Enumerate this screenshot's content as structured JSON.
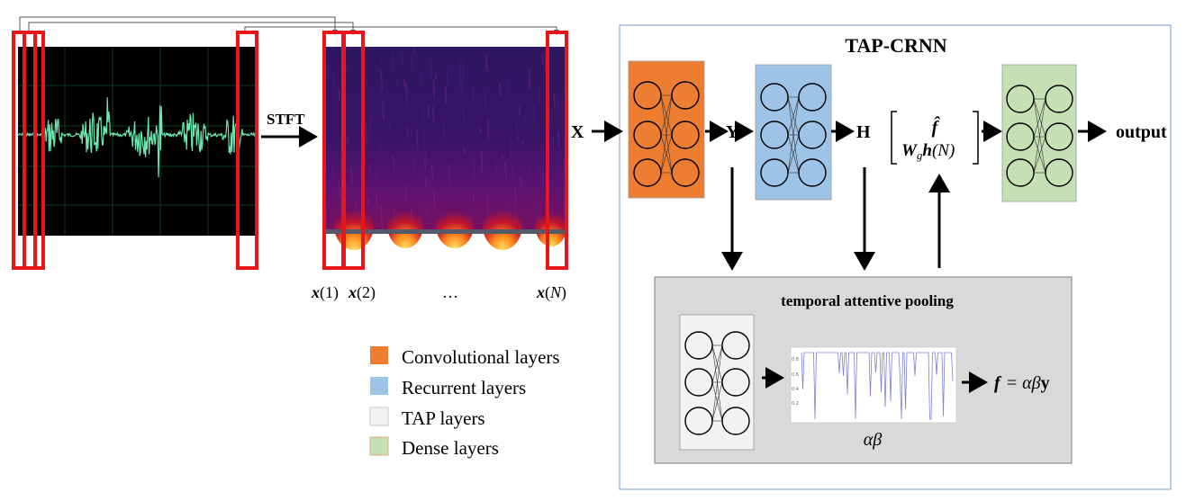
{
  "labels": {
    "stft": "STFT",
    "x_input": "X",
    "y_mid": "Y",
    "h_mid": "H",
    "output": "output",
    "title": "TAP-CRNN",
    "tap_title": "temporal attentive pooling",
    "alpha_beta": "αβ",
    "frame_1": "x(1)",
    "frame_2": "x(2)",
    "frame_dots": "…",
    "frame_n": "x(N)",
    "vector_top": "f̂",
    "vector_bottom": "W",
    "vector_bottom_sub": "g",
    "vector_bottom_rest": "h(N)",
    "f_eq_lhs": "f",
    "f_eq_rhs": "= αβy"
  },
  "legend": [
    {
      "label": "Convolutional layers",
      "color": "#ED7D31"
    },
    {
      "label": "Recurrent layers",
      "color": "#9DC3E6"
    },
    {
      "label": "TAP layers",
      "color": "#F2F2F2"
    },
    {
      "label": "Dense layers",
      "color": "#C5E0B4"
    }
  ],
  "colors": {
    "frame_red": "#E8151B",
    "waveform_bg": "#000000",
    "waveform_line": "#6BE8B0",
    "conv": "#ED7D31",
    "recurrent": "#9DC3E6",
    "tap": "#F2F2F2",
    "dense": "#C5E0B4",
    "tap_panel": "#D9D9D9",
    "outer_box": "#8EA9DB",
    "spectrogram_bg": "#2B0F4E",
    "attention_line": "#7B7FD6"
  }
}
